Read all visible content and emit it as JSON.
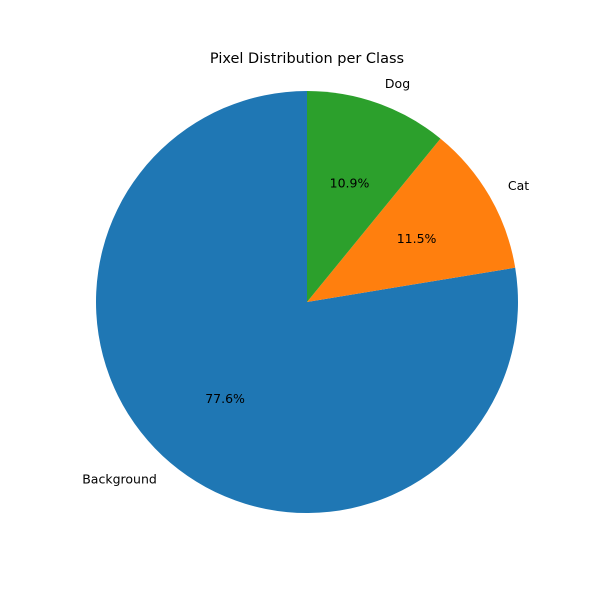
{
  "chart_data": {
    "type": "pie",
    "title": "Pixel Distribution per Class",
    "slices": [
      {
        "label": "Background",
        "value": 77.6,
        "pct_label": "77.6%",
        "color": "#1f77b4"
      },
      {
        "label": "Cat",
        "value": 11.5,
        "pct_label": "11.5%",
        "color": "#ff7f0e"
      },
      {
        "label": "Dog",
        "value": 10.9,
        "pct_label": "10.9%",
        "color": "#2ca02c"
      }
    ],
    "start_angle_deg": 90,
    "direction": "counterclockwise"
  }
}
